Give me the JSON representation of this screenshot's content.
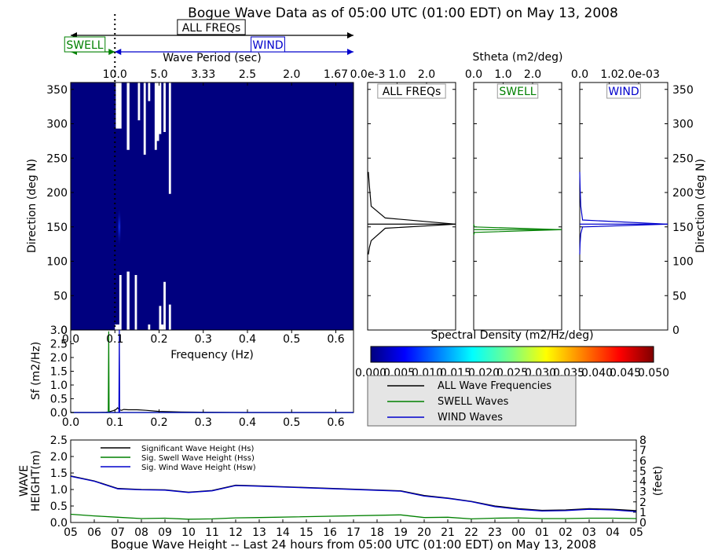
{
  "title": "Bogue Wave Data as of 05:00 UTC (01:00 EDT) on May 13, 2008",
  "colors": {
    "all": "#000000",
    "swell": "#008000",
    "wind": "#0000cc",
    "spec_bg": "#00007f"
  },
  "bands": {
    "all_label": "ALL FREQs",
    "swell_label": "SWELL",
    "wind_label": "WIND",
    "split_freq": 0.1
  },
  "spectrum": {
    "type": "heatmap",
    "top_label": "Wave Period (sec)",
    "period_ticks": [
      "10.0",
      "5.0",
      "3.33",
      "2.5",
      "2.0",
      "1.67"
    ],
    "period_tick_freqs": [
      0.1,
      0.2,
      0.3,
      0.4,
      0.5,
      0.6
    ],
    "ylabel": "Direction (deg N)",
    "xlim": [
      0,
      0.64
    ],
    "ylim": [
      0,
      360
    ],
    "yticks": [
      "0",
      "50",
      "100",
      "150",
      "200",
      "250",
      "300",
      "350"
    ],
    "ytick_values": [
      0,
      50,
      100,
      150,
      200,
      250,
      300,
      350
    ],
    "voids": [
      {
        "f": [
          0.1,
          0.11
        ],
        "d": [
          0,
          8
        ]
      },
      {
        "f": [
          0.102,
          0.115
        ],
        "d": [
          293,
          360
        ]
      },
      {
        "f": [
          0.11,
          0.115
        ],
        "d": [
          0,
          80
        ]
      },
      {
        "f": [
          0.127,
          0.133
        ],
        "d": [
          262,
          360
        ]
      },
      {
        "f": [
          0.127,
          0.133
        ],
        "d": [
          0,
          85
        ]
      },
      {
        "f": [
          0.145,
          0.15
        ],
        "d": [
          0,
          80
        ]
      },
      {
        "f": [
          0.152,
          0.157
        ],
        "d": [
          305,
          360
        ]
      },
      {
        "f": [
          0.165,
          0.17
        ],
        "d": [
          255,
          360
        ]
      },
      {
        "f": [
          0.175,
          0.18
        ],
        "d": [
          0,
          8
        ]
      },
      {
        "f": [
          0.175,
          0.18
        ],
        "d": [
          333,
          360
        ]
      },
      {
        "f": [
          0.19,
          0.195
        ],
        "d": [
          262,
          360
        ]
      },
      {
        "f": [
          0.193,
          0.2
        ],
        "d": [
          275,
          360
        ]
      },
      {
        "f": [
          0.2,
          0.205
        ],
        "d": [
          0,
          35
        ]
      },
      {
        "f": [
          0.2,
          0.205
        ],
        "d": [
          285,
          360
        ]
      },
      {
        "f": [
          0.2,
          0.21
        ],
        "d": [
          0,
          8
        ]
      },
      {
        "f": [
          0.21,
          0.215
        ],
        "d": [
          0,
          70
        ]
      },
      {
        "f": [
          0.21,
          0.215
        ],
        "d": [
          288,
          360
        ]
      },
      {
        "f": [
          0.222,
          0.227
        ],
        "d": [
          0,
          37
        ]
      },
      {
        "f": [
          0.222,
          0.227
        ],
        "d": [
          198,
          360
        ]
      }
    ],
    "peak": {
      "f": [
        0.105,
        0.115
      ],
      "d": [
        120,
        180
      ]
    }
  },
  "freq_spectrum": {
    "type": "line",
    "xlabel": "Frequency (Hz)",
    "ylabel": "Sf (m2/Hz)",
    "xlim": [
      0,
      0.64
    ],
    "ylim": [
      0,
      3
    ],
    "xticks": [
      "0.0",
      "0.1",
      "0.2",
      "0.3",
      "0.4",
      "0.5",
      "0.6"
    ],
    "xtick_values": [
      0,
      0.1,
      0.2,
      0.3,
      0.4,
      0.5,
      0.6
    ],
    "yticks": [
      "0.0",
      "0.5",
      "1.0",
      "1.5",
      "2.0",
      "2.5",
      "3.0"
    ],
    "ytick_values": [
      0,
      0.5,
      1,
      1.5,
      2,
      2.5,
      3
    ],
    "series": [
      {
        "key": "all",
        "x": [
          0,
          0.06,
          0.08,
          0.085,
          0.088,
          0.092,
          0.1,
          0.104,
          0.106,
          0.108,
          0.11,
          0.115,
          0.12,
          0.13,
          0.15,
          0.17,
          0.2,
          0.25,
          0.3,
          0.4,
          0.64
        ],
        "y": [
          0,
          0,
          0.01,
          0.02,
          0.03,
          0.05,
          0.09,
          0.13,
          0.17,
          0.14,
          0.1,
          0.08,
          0.11,
          0.1,
          0.1,
          0.08,
          0.04,
          0.02,
          0.01,
          0,
          0
        ]
      },
      {
        "key": "swell",
        "x": [
          0,
          0.085,
          0.086,
          0.087,
          0.1,
          0.64
        ],
        "y": [
          0,
          0,
          2.95,
          0,
          0,
          0
        ]
      },
      {
        "key": "wind",
        "x": [
          0,
          0.109,
          0.11,
          0.111,
          0.64
        ],
        "y": [
          0,
          0,
          3.0,
          0,
          0
        ]
      }
    ]
  },
  "direction_panels": {
    "xlabel": "Stheta (m2/deg)",
    "panels": [
      {
        "key": "all",
        "label": "ALL FREQs",
        "ticks": [
          "0.0e-3",
          "1.0",
          "2.0"
        ],
        "peak_dir": 154,
        "x": [
          0.02,
          0.05,
          0.1,
          0.5,
          2.5,
          0.5,
          0.1,
          0.05,
          0.02
        ],
        "y": [
          110,
          120,
          130,
          148,
          154,
          163,
          180,
          210,
          230
        ]
      },
      {
        "key": "swell",
        "label": "SWELL",
        "ticks": [
          "0.0",
          "1.0",
          "2.0"
        ],
        "peak_dir": 146,
        "x": [
          0,
          0.02,
          2.5,
          0.02,
          0
        ],
        "y": [
          138,
          142,
          146,
          150,
          154
        ]
      },
      {
        "key": "wind",
        "label": "WIND",
        "ticks": [
          "0.0",
          "1.0",
          "2.0e-03"
        ],
        "peak_dir": 154,
        "x": [
          0,
          0.01,
          0.03,
          0.08,
          2.5,
          0.08,
          0.03,
          0.01,
          0
        ],
        "y": [
          110,
          125,
          140,
          150,
          154,
          160,
          180,
          210,
          230
        ]
      }
    ],
    "right_ylabel": "Direction (deg N)",
    "yticks": [
      "0",
      "50",
      "100",
      "150",
      "200",
      "250",
      "300",
      "350"
    ]
  },
  "colorbar": {
    "label": "Spectral Density (m2/Hz/deg)",
    "ticks": [
      "0.000",
      "0.005",
      "0.010",
      "0.015",
      "0.020",
      "0.025",
      "0.030",
      "0.035",
      "0.040",
      "0.045",
      "0.050"
    ]
  },
  "legend": {
    "items": [
      {
        "key": "all",
        "label": "ALL Wave Frequencies"
      },
      {
        "key": "swell",
        "label": "SWELL Waves"
      },
      {
        "key": "wind",
        "label": "WIND Waves"
      }
    ]
  },
  "wave_height": {
    "type": "line",
    "xlabel": "Bogue Wave Height -- Last 24 hours from 05:00 UTC (01:00 EDT) on May 13, 2008",
    "ylabel": "WAVE HEIGHT(m)",
    "ylabel_right": "(feet)",
    "ylim": [
      0,
      2.5
    ],
    "ylim_feet": [
      0,
      8
    ],
    "yticks": [
      "0.0",
      "0.5",
      "1.0",
      "1.5",
      "2.0",
      "2.5"
    ],
    "yticks_feet": [
      "0",
      "1",
      "2",
      "3",
      "4",
      "5",
      "6",
      "7",
      "8"
    ],
    "categories": [
      "05",
      "06",
      "07",
      "08",
      "09",
      "10",
      "11",
      "12",
      "13",
      "14",
      "15",
      "16",
      "17",
      "18",
      "19",
      "20",
      "21",
      "22",
      "23",
      "00",
      "01",
      "02",
      "03",
      "04",
      "05"
    ],
    "series": [
      {
        "key": "all",
        "name": "Significant Wave Height (Hs)",
        "values": [
          1.41,
          1.26,
          1.03,
          1.0,
          0.99,
          0.92,
          0.97,
          1.13,
          1.11,
          null,
          null,
          null,
          null,
          null,
          0.96,
          0.82,
          0.74,
          0.64,
          0.5,
          0.42,
          0.37,
          0.38,
          0.42,
          0.4,
          0.36
        ]
      },
      {
        "key": "swell",
        "name": "Sig. Swell Wave Height (Hss)",
        "values": [
          0.25,
          0.2,
          0.16,
          0.12,
          0.13,
          0.1,
          0.11,
          0.14,
          0.15,
          null,
          null,
          null,
          null,
          null,
          0.23,
          0.15,
          0.16,
          0.11,
          0.13,
          0.14,
          0.12,
          0.12,
          0.13,
          0.13,
          0.12
        ]
      },
      {
        "key": "wind",
        "name": "Sig. Wind Wave Height (Hsw)",
        "values": [
          1.4,
          1.25,
          1.02,
          0.99,
          0.98,
          0.91,
          0.96,
          1.12,
          1.1,
          null,
          null,
          null,
          null,
          null,
          0.95,
          0.8,
          0.73,
          0.63,
          0.48,
          0.4,
          0.35,
          0.36,
          0.4,
          0.38,
          0.33
        ]
      }
    ]
  }
}
